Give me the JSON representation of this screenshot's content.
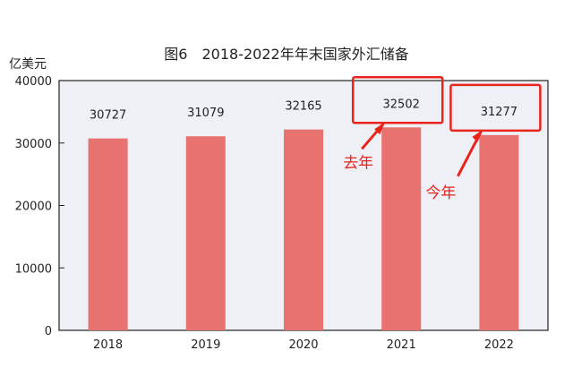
{
  "chart_data": {
    "type": "bar",
    "title": "图6　2018-2022年年末国家外汇储备",
    "ylabel": "亿美元",
    "xlabel": "",
    "categories": [
      "2018",
      "2019",
      "2020",
      "2021",
      "2022"
    ],
    "values": [
      30727,
      31079,
      32165,
      32502,
      31277
    ],
    "ylim": [
      0,
      40000
    ],
    "yticks": [
      0,
      10000,
      20000,
      30000,
      40000
    ],
    "grid": false,
    "bar_color": "#e8726f",
    "plot_background": "#eef0f6",
    "annotations": [
      {
        "text": "去年",
        "target": "2021",
        "color": "#e8241c"
      },
      {
        "text": "今年",
        "target": "2022",
        "color": "#e8241c"
      }
    ]
  }
}
